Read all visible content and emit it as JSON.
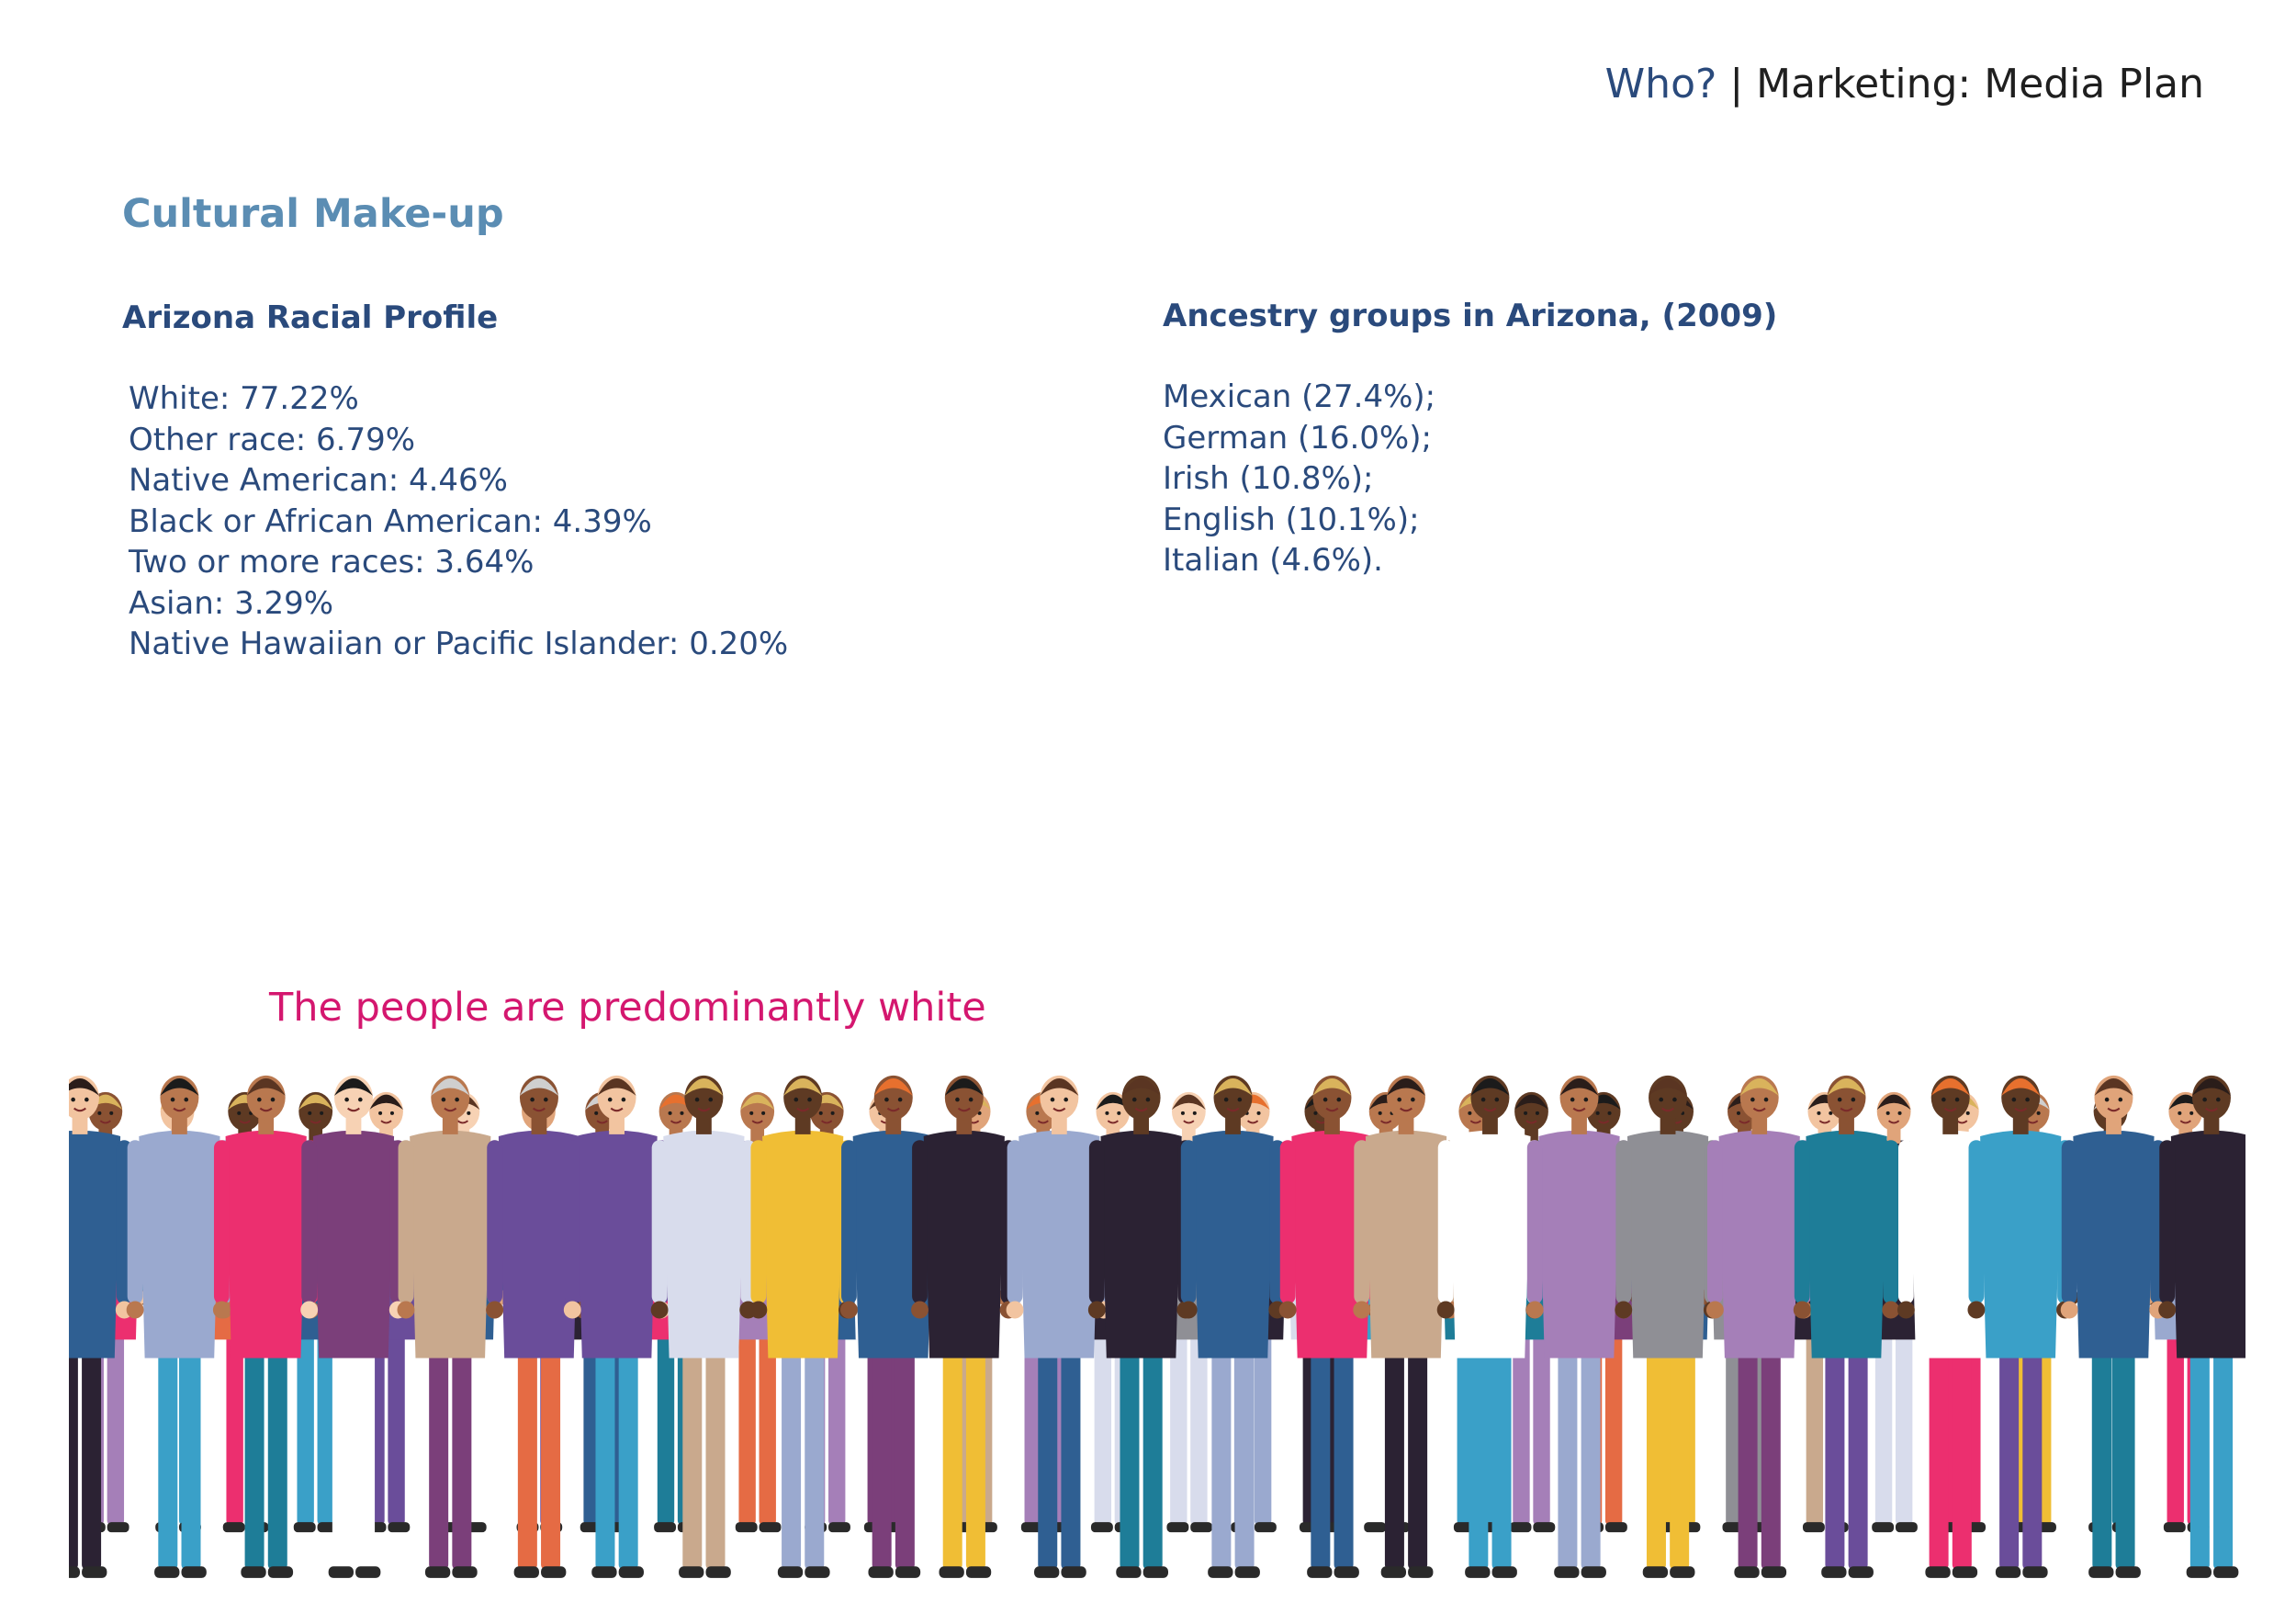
{
  "header": {
    "who": "Who?",
    "rest": " | Marketing: Media Plan"
  },
  "section_title": "Cultural Make-up",
  "racial_profile": {
    "heading": "Arizona Racial Profile",
    "items": [
      "White: 77.22%",
      "Other race: 6.79%",
      "Native American: 4.46%",
      "Black or African American: 4.39%",
      "Two or more races: 3.64%",
      "Asian: 3.29%",
      "Native Hawaiian or Pacific Islander: 0.20%"
    ]
  },
  "ancestry": {
    "heading": "Ancestry groups in Arizona, (2009)",
    "items": [
      "Mexican (27.4%);",
      "German (16.0%);",
      "Irish (10.8%);",
      "English (10.1%);",
      "Italian (4.6%)."
    ]
  },
  "caption": "The people are predominantly white",
  "illustration": {
    "name": "diverse-crowd-illustration",
    "colors": {
      "skin": [
        "#f2c4a0",
        "#e0a47a",
        "#b9784f",
        "#8a5233",
        "#5e3a23",
        "#f7d2b4"
      ],
      "clothes": [
        "#f0be35",
        "#ec2f6f",
        "#2f5f92",
        "#a57fb8",
        "#2b2233",
        "#9aa9cf",
        "#ffffff",
        "#c9a98d",
        "#3aa0c8",
        "#e56b44",
        "#7b3f7a",
        "#d8dcec",
        "#8f8f95",
        "#1e7d98",
        "#6a4d9a"
      ],
      "hair": [
        "#2a1d1a",
        "#e7702e",
        "#d9b35c",
        "#5a3522",
        "#cfcfcf",
        "#1b1b1b"
      ]
    }
  }
}
